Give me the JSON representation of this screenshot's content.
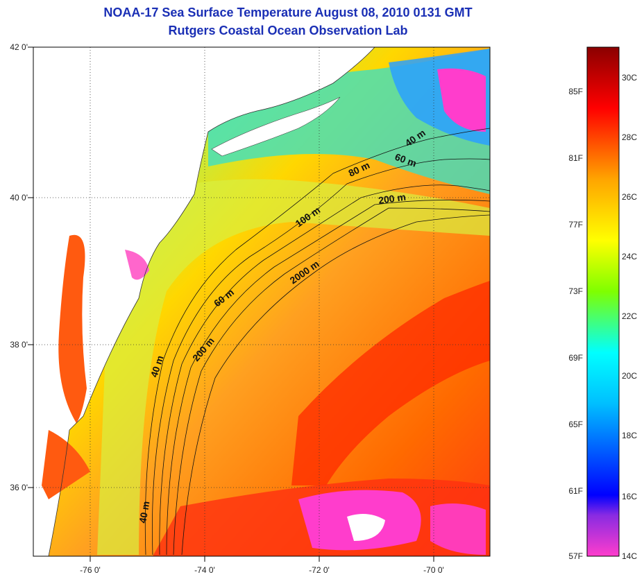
{
  "header": {
    "title_line1": "NOAA-17 Sea Surface Temperature August 08, 2010 0131 GMT",
    "title_line2": "Rutgers Coastal Ocean Observation Lab"
  },
  "map": {
    "lat_ticks": [
      "42 0'",
      "40 0'",
      "38 0'",
      "36 0'"
    ],
    "lon_ticks": [
      "-76 0'",
      "-74 0'",
      "-72 0'",
      "-70 0'"
    ],
    "depth_labels": [
      "40 m",
      "60 m",
      "80 m",
      "200 m",
      "100 m",
      "2000 m",
      "60 m",
      "200 m",
      "40 m",
      "40 m"
    ]
  },
  "colorbar": {
    "fahrenheit_labels": [
      "85F",
      "81F",
      "77F",
      "73F",
      "69F",
      "65F",
      "61F",
      "57F"
    ],
    "celsius_labels": [
      "30C",
      "28C",
      "26C",
      "24C",
      "22C",
      "20C",
      "18C",
      "16C",
      "14C"
    ],
    "colors": [
      "#ff3dcc",
      "#8a2be2",
      "#0000ff",
      "#00bfff",
      "#00ffff",
      "#7fff00",
      "#ffff00",
      "#ffa500",
      "#ff0000",
      "#8b0000"
    ]
  }
}
